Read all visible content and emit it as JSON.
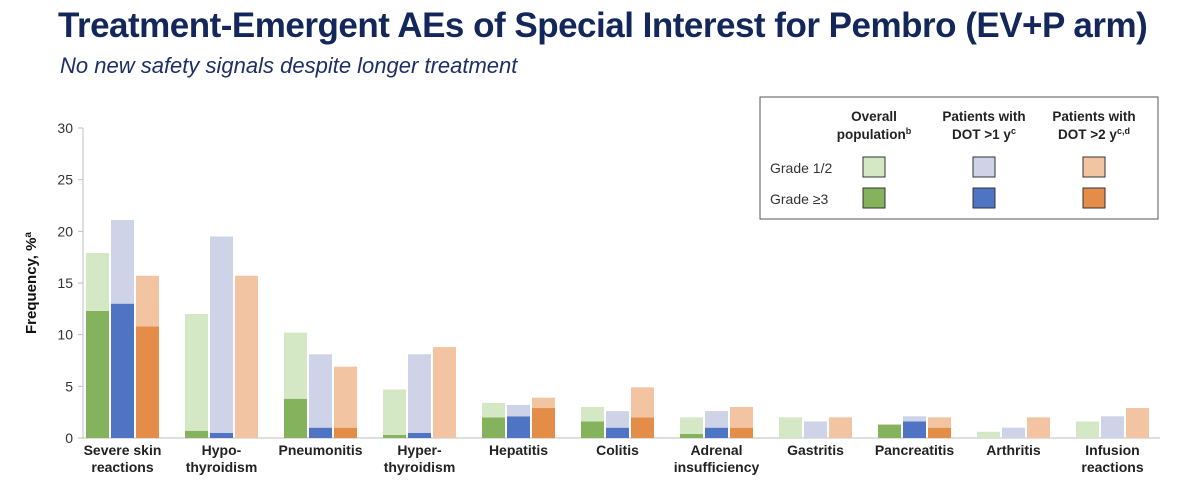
{
  "slide": {
    "title": "Treatment-Emergent AEs of Special Interest for Pembro (EV+P arm)",
    "subtitle": "No new safety signals despite longer treatment"
  },
  "chart_data": {
    "type": "bar",
    "stacked": true,
    "ylabel": "Frequency, %",
    "ylabel_superscript": "a",
    "ylim": [
      0,
      30
    ],
    "yticks": [
      0,
      5,
      10,
      15,
      20,
      25,
      30
    ],
    "grid": false,
    "legend_position": "top-right",
    "categories": [
      "Severe skin reactions",
      "Hypo-thyroidism",
      "Pneumonitis",
      "Hyper-thyroidism",
      "Hepatitis",
      "Colitis",
      "Adrenal insufficiency",
      "Gastritis",
      "Pancreatitis",
      "Arthritis",
      "Infusion reactions"
    ],
    "category_lines": [
      [
        "Severe skin",
        "reactions"
      ],
      [
        "Hypo-",
        "thyroidism"
      ],
      [
        "Pneumonitis"
      ],
      [
        "Hyper-",
        "thyroidism"
      ],
      [
        "Hepatitis"
      ],
      [
        "Colitis"
      ],
      [
        "Adrenal",
        "insufficiency"
      ],
      [
        "Gastritis"
      ],
      [
        "Pancreatitis"
      ],
      [
        "Arthritis"
      ],
      [
        "Infusion",
        "reactions"
      ]
    ],
    "groups": [
      {
        "label_lines": [
          "Overall",
          "population"
        ],
        "superscript": "b",
        "light_color": "#d5e8c6",
        "dark_color": "#85b35d"
      },
      {
        "label_lines": [
          "Patients with",
          "DOT >1 y"
        ],
        "superscript": "c",
        "light_color": "#ced3e7",
        "dark_color": "#4f74c4"
      },
      {
        "label_lines": [
          "Patients with",
          "DOT >2 y"
        ],
        "superscript": "c,d",
        "light_color": "#f2c4a2",
        "dark_color": "#e48d48"
      }
    ],
    "legend_rows": [
      "Grade 1/2",
      "Grade ≥3"
    ],
    "series": [
      {
        "group": "Overall population",
        "grade": "Grade ≥3",
        "values": [
          12.3,
          0.7,
          3.8,
          0.3,
          2.0,
          1.6,
          0.4,
          0,
          1.3,
          0,
          0
        ]
      },
      {
        "group": "Overall population",
        "grade": "Grade 1/2",
        "values": [
          5.6,
          11.3,
          6.4,
          4.4,
          1.4,
          1.4,
          1.6,
          2.0,
          0,
          0.6,
          1.6
        ]
      },
      {
        "group": "Patients with DOT >1 y",
        "grade": "Grade ≥3",
        "values": [
          13.0,
          0.5,
          1.0,
          0.5,
          2.1,
          1.0,
          1.0,
          0,
          1.6,
          0,
          0
        ]
      },
      {
        "group": "Patients with DOT >1 y",
        "grade": "Grade 1/2",
        "values": [
          8.1,
          19.0,
          7.1,
          7.6,
          1.1,
          1.6,
          1.6,
          1.6,
          0.5,
          1.0,
          2.1
        ]
      },
      {
        "group": "Patients with DOT >2 y",
        "grade": "Grade ≥3",
        "values": [
          10.8,
          0,
          1.0,
          0,
          2.9,
          2.0,
          1.0,
          0,
          1.0,
          0,
          0
        ]
      },
      {
        "group": "Patients with DOT >2 y",
        "grade": "Grade 1/2",
        "values": [
          4.9,
          15.7,
          5.9,
          8.8,
          1.0,
          2.9,
          2.0,
          2.0,
          1.0,
          2.0,
          2.9
        ]
      }
    ]
  }
}
